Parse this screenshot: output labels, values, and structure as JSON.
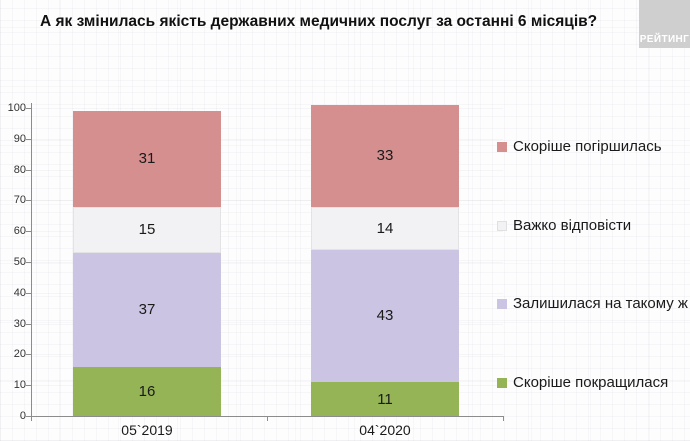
{
  "title": "А як змінилась якість державних медичних послуг за останні 6 місяців?",
  "logo": {
    "text": "РЕЙТИНГ"
  },
  "colors": {
    "worsened": "#d58f8f",
    "hard_to_answer": "#f2f1f3",
    "same_level": "#cbc5e3",
    "improved": "#94b456",
    "axis": "#8c8c8c",
    "logo_bg": "#cfcfcf"
  },
  "chart_data": {
    "type": "bar",
    "stacked": true,
    "title": "А як змінилась якість державних медичних послуг за останні 6 місяців?",
    "categories": [
      "05`2019",
      "04`2020"
    ],
    "series": [
      {
        "name": "Скоріше покращилася",
        "color": "#94b456",
        "values": [
          16,
          11
        ]
      },
      {
        "name": "Залишилася на такому ж рівні",
        "color": "#cbc5e3",
        "values": [
          37,
          43
        ]
      },
      {
        "name": "Важко відповісти",
        "color": "#f2f1f3",
        "values": [
          15,
          14
        ]
      },
      {
        "name": "Скоріше погіршилась",
        "color": "#d58f8f",
        "values": [
          31,
          33
        ]
      }
    ],
    "xlabel": "",
    "ylabel": "",
    "ylim": [
      0,
      100
    ],
    "yticks": [
      0,
      10,
      20,
      30,
      40,
      50,
      60,
      70,
      80,
      90,
      100
    ],
    "grid": true,
    "legend_position": "right",
    "legend_order_top_to_bottom": [
      "Скоріше погіршилась",
      "Важко відповісти",
      "Залишилася на такому ж рівні",
      "Скоріше покращилася"
    ]
  }
}
